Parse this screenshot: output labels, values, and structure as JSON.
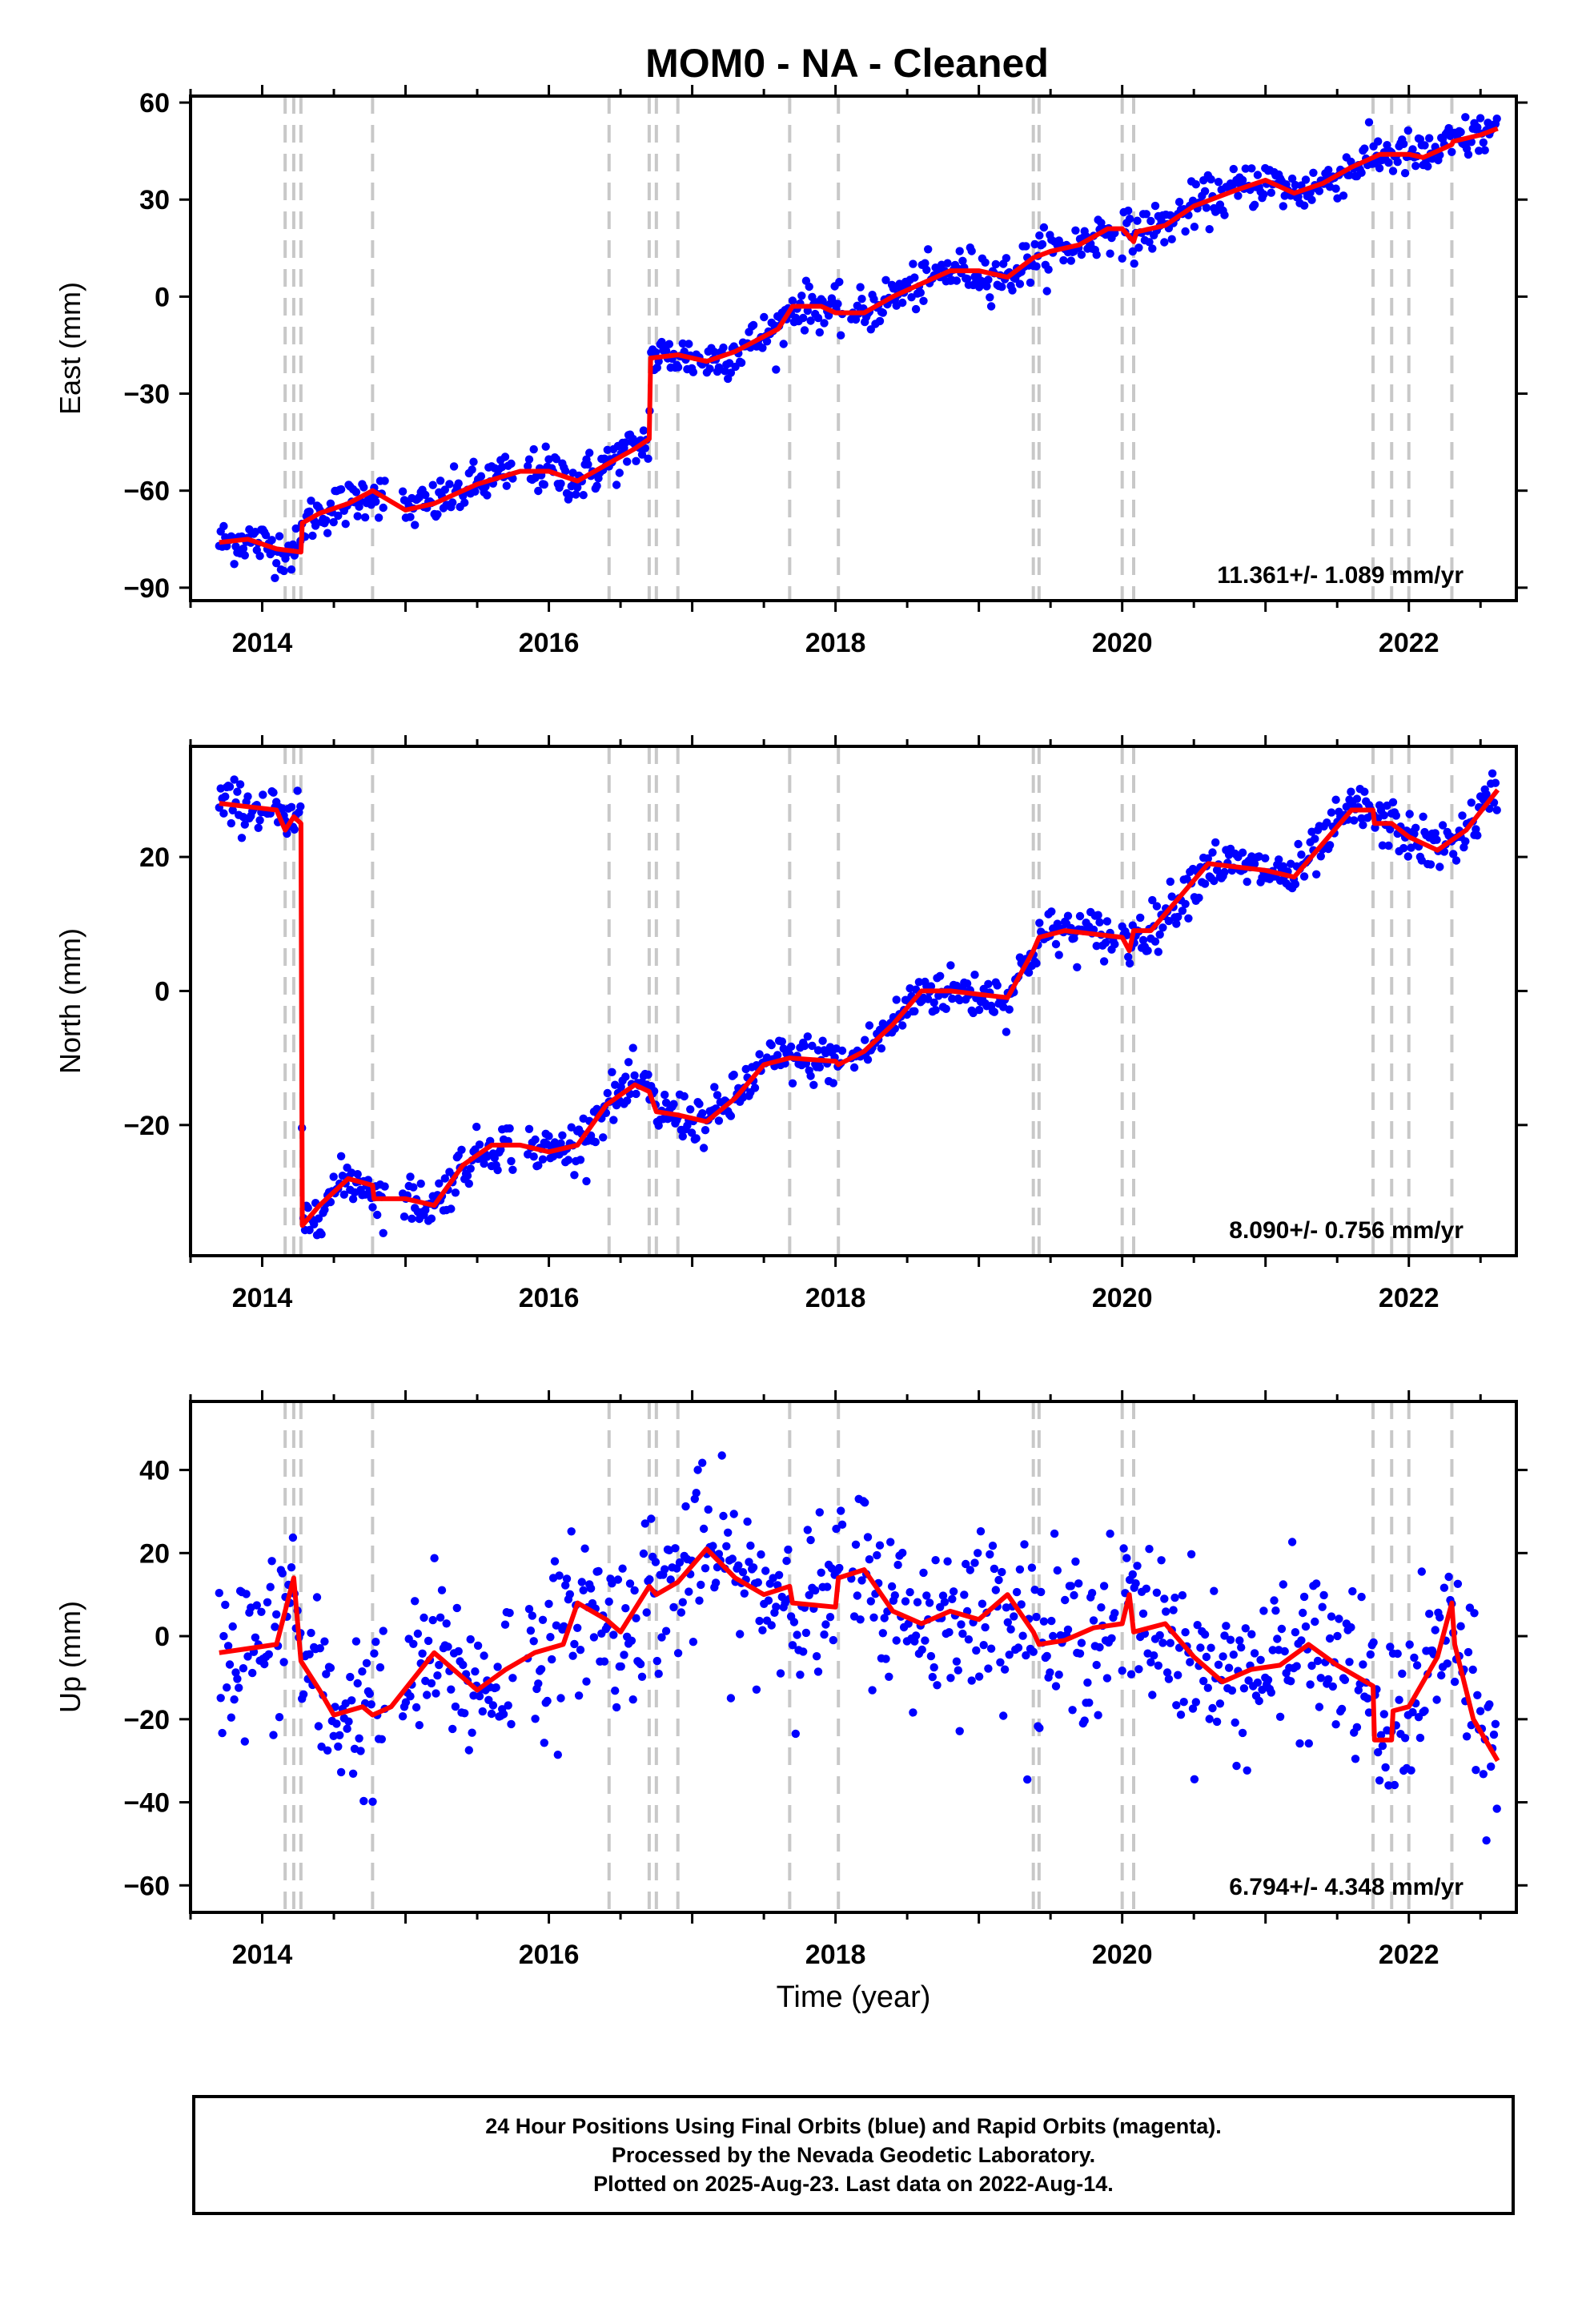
{
  "title": "MOM0  - NA - Cleaned",
  "footer": {
    "line1": "24 Hour Positions Using Final Orbits (blue) and Rapid Orbits (magenta).",
    "line2": "Processed by the Nevada Geodetic Laboratory.",
    "line3": "Plotted on 2025-Aug-23. Last data on 2022-Aug-14."
  },
  "colors": {
    "points": "#0000ff",
    "model": "#ff0000",
    "breaks": "#c8c8c8",
    "axis": "#000000"
  },
  "chart_data": [
    {
      "type": "scatter",
      "ylabel": "East (mm)",
      "xlim": [
        2013.5,
        2022.75
      ],
      "ylim": [
        -94,
        62
      ],
      "yticks": [
        -90,
        -60,
        -30,
        0,
        30,
        60
      ],
      "xticks": [
        2014,
        2016,
        2018,
        2020,
        2022
      ],
      "rate_label": "11.361+/- 1.089 mm/yr",
      "equipment_breaks": [
        2014.16,
        2014.22,
        2014.27,
        2014.77,
        2016.42,
        2016.7,
        2016.75,
        2016.9,
        2017.68,
        2018.02,
        2019.38,
        2019.42,
        2020.0,
        2020.08,
        2021.75,
        2021.88,
        2022.0,
        2022.3
      ],
      "model": [
        [
          2013.7,
          -76
        ],
        [
          2013.9,
          -75
        ],
        [
          2014.1,
          -78
        ],
        [
          2014.27,
          -79
        ],
        [
          2014.28,
          -70
        ],
        [
          2014.4,
          -67
        ],
        [
          2014.6,
          -64
        ],
        [
          2014.77,
          -60
        ],
        [
          2015.0,
          -66
        ],
        [
          2015.2,
          -64
        ],
        [
          2015.5,
          -58
        ],
        [
          2015.8,
          -54
        ],
        [
          2016.0,
          -54
        ],
        [
          2016.2,
          -57
        ],
        [
          2016.4,
          -52
        ],
        [
          2016.6,
          -47
        ],
        [
          2016.7,
          -44
        ],
        [
          2016.71,
          -19
        ],
        [
          2016.9,
          -18
        ],
        [
          2017.1,
          -20
        ],
        [
          2017.3,
          -17
        ],
        [
          2017.6,
          -10
        ],
        [
          2017.7,
          -3
        ],
        [
          2017.9,
          -3
        ],
        [
          2018.0,
          -5
        ],
        [
          2018.2,
          -5
        ],
        [
          2018.4,
          0
        ],
        [
          2018.6,
          4
        ],
        [
          2018.8,
          8
        ],
        [
          2019.0,
          8
        ],
        [
          2019.2,
          6
        ],
        [
          2019.38,
          12
        ],
        [
          2019.5,
          14
        ],
        [
          2019.7,
          16
        ],
        [
          2019.9,
          21
        ],
        [
          2020.0,
          21
        ],
        [
          2020.08,
          17
        ],
        [
          2020.1,
          20
        ],
        [
          2020.3,
          22
        ],
        [
          2020.5,
          28
        ],
        [
          2020.8,
          33
        ],
        [
          2021.0,
          36
        ],
        [
          2021.2,
          32
        ],
        [
          2021.4,
          35
        ],
        [
          2021.6,
          40
        ],
        [
          2021.8,
          44
        ],
        [
          2022.0,
          44
        ],
        [
          2022.1,
          43
        ],
        [
          2022.3,
          47
        ],
        [
          2022.31,
          48
        ],
        [
          2022.5,
          50
        ],
        [
          2022.62,
          52
        ]
      ],
      "noise": 3.5
    },
    {
      "type": "scatter",
      "ylabel": "North (mm)",
      "xlim": [
        2013.5,
        2022.75
      ],
      "ylim": [
        -39.5,
        36.5
      ],
      "yticks": [
        -20,
        0,
        20
      ],
      "xticks": [
        2014,
        2016,
        2018,
        2020,
        2022
      ],
      "rate_label": "8.090+/- 0.756 mm/yr",
      "equipment_breaks": [
        2014.16,
        2014.22,
        2014.27,
        2014.77,
        2016.42,
        2016.7,
        2016.75,
        2016.9,
        2017.68,
        2018.02,
        2019.38,
        2019.42,
        2020.0,
        2020.08,
        2021.75,
        2021.88,
        2022.0,
        2022.3
      ],
      "model": [
        [
          2013.7,
          28
        ],
        [
          2013.9,
          27.5
        ],
        [
          2014.1,
          27
        ],
        [
          2014.16,
          24
        ],
        [
          2014.22,
          26
        ],
        [
          2014.27,
          25
        ],
        [
          2014.28,
          -35
        ],
        [
          2014.4,
          -32
        ],
        [
          2014.6,
          -28
        ],
        [
          2014.77,
          -29
        ],
        [
          2014.78,
          -31
        ],
        [
          2015.0,
          -31
        ],
        [
          2015.2,
          -32
        ],
        [
          2015.4,
          -26
        ],
        [
          2015.6,
          -23
        ],
        [
          2015.8,
          -23
        ],
        [
          2016.0,
          -24
        ],
        [
          2016.2,
          -23
        ],
        [
          2016.4,
          -17
        ],
        [
          2016.6,
          -14
        ],
        [
          2016.7,
          -15
        ],
        [
          2016.75,
          -18
        ],
        [
          2016.9,
          -18.5
        ],
        [
          2017.1,
          -19.5
        ],
        [
          2017.3,
          -16
        ],
        [
          2017.5,
          -11
        ],
        [
          2017.68,
          -10
        ],
        [
          2018.0,
          -10.5
        ],
        [
          2018.02,
          -11
        ],
        [
          2018.2,
          -9
        ],
        [
          2018.4,
          -5
        ],
        [
          2018.6,
          0
        ],
        [
          2018.8,
          0
        ],
        [
          2019.0,
          -0.5
        ],
        [
          2019.2,
          -1
        ],
        [
          2019.38,
          6
        ],
        [
          2019.42,
          8
        ],
        [
          2019.6,
          9
        ],
        [
          2019.8,
          8.5
        ],
        [
          2020.0,
          8
        ],
        [
          2020.05,
          6
        ],
        [
          2020.08,
          9
        ],
        [
          2020.2,
          9
        ],
        [
          2020.4,
          14
        ],
        [
          2020.6,
          19
        ],
        [
          2020.8,
          18.5
        ],
        [
          2021.0,
          18
        ],
        [
          2021.2,
          17
        ],
        [
          2021.4,
          22
        ],
        [
          2021.6,
          27
        ],
        [
          2021.75,
          27
        ],
        [
          2021.76,
          25
        ],
        [
          2021.88,
          25
        ],
        [
          2022.0,
          23
        ],
        [
          2022.2,
          21
        ],
        [
          2022.4,
          24
        ],
        [
          2022.62,
          30
        ]
      ],
      "noise": 1.8
    },
    {
      "type": "scatter",
      "ylabel": "Up (mm)",
      "xlabel": "Time (year)",
      "xlim": [
        2013.5,
        2022.75
      ],
      "ylim": [
        -66.5,
        56.5
      ],
      "yticks": [
        -60,
        -40,
        -20,
        0,
        20,
        40
      ],
      "xticks": [
        2014,
        2016,
        2018,
        2020,
        2022
      ],
      "rate_label": "6.794+/- 4.348 mm/yr",
      "equipment_breaks": [
        2014.16,
        2014.22,
        2014.27,
        2014.77,
        2016.42,
        2016.7,
        2016.75,
        2016.9,
        2017.68,
        2018.02,
        2019.38,
        2019.42,
        2020.0,
        2020.08,
        2021.75,
        2021.88,
        2022.0,
        2022.3
      ],
      "model": [
        [
          2013.7,
          -4
        ],
        [
          2013.9,
          -3
        ],
        [
          2014.1,
          -2
        ],
        [
          2014.22,
          14
        ],
        [
          2014.27,
          -6
        ],
        [
          2014.4,
          -13
        ],
        [
          2014.5,
          -19
        ],
        [
          2014.7,
          -17
        ],
        [
          2014.77,
          -19
        ],
        [
          2014.9,
          -17
        ],
        [
          2015.2,
          -4
        ],
        [
          2015.5,
          -13
        ],
        [
          2015.7,
          -8
        ],
        [
          2015.9,
          -4
        ],
        [
          2016.1,
          -2
        ],
        [
          2016.2,
          8
        ],
        [
          2016.4,
          4
        ],
        [
          2016.5,
          1
        ],
        [
          2016.7,
          12
        ],
        [
          2016.75,
          10
        ],
        [
          2016.9,
          13
        ],
        [
          2017.1,
          21
        ],
        [
          2017.3,
          14
        ],
        [
          2017.5,
          10
        ],
        [
          2017.68,
          12
        ],
        [
          2017.7,
          8
        ],
        [
          2018.0,
          7
        ],
        [
          2018.02,
          14
        ],
        [
          2018.2,
          16
        ],
        [
          2018.4,
          6
        ],
        [
          2018.6,
          3
        ],
        [
          2018.8,
          6
        ],
        [
          2019.0,
          4
        ],
        [
          2019.2,
          10
        ],
        [
          2019.38,
          1
        ],
        [
          2019.42,
          -2
        ],
        [
          2019.6,
          -1
        ],
        [
          2019.8,
          2
        ],
        [
          2020.0,
          3
        ],
        [
          2020.05,
          10
        ],
        [
          2020.08,
          1
        ],
        [
          2020.3,
          3
        ],
        [
          2020.5,
          -5
        ],
        [
          2020.7,
          -11
        ],
        [
          2020.9,
          -8
        ],
        [
          2021.1,
          -7
        ],
        [
          2021.3,
          -2
        ],
        [
          2021.5,
          -7
        ],
        [
          2021.75,
          -12
        ],
        [
          2021.76,
          -25
        ],
        [
          2021.88,
          -25
        ],
        [
          2021.89,
          -18
        ],
        [
          2022.0,
          -17
        ],
        [
          2022.2,
          -5
        ],
        [
          2022.3,
          8
        ],
        [
          2022.32,
          -2
        ],
        [
          2022.45,
          -20
        ],
        [
          2022.62,
          -30
        ]
      ],
      "noise": 10
    }
  ]
}
